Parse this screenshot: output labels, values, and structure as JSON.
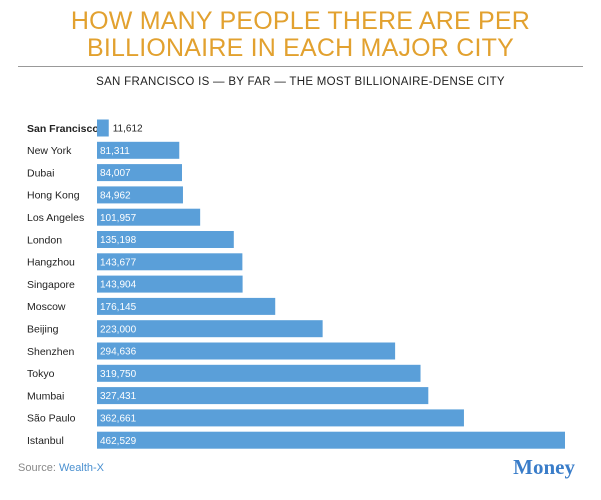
{
  "chart_data": {
    "type": "bar",
    "orientation": "horizontal",
    "title": "HOW MANY PEOPLE THERE ARE PER BILLIONAIRE IN EACH MAJOR CITY",
    "subtitle": "SAN FRANCISCO IS — BY FAR — THE MOST BILLIONAIRE-DENSE CITY",
    "categories": [
      "San Francisco",
      "New York",
      "Dubai",
      "Hong Kong",
      "Los Angeles",
      "London",
      "Hangzhou",
      "Singapore",
      "Moscow",
      "Beijing",
      "Shenzhen",
      "Tokyo",
      "Mumbai",
      "São Paulo",
      "Istanbul"
    ],
    "values": [
      11612,
      81311,
      84007,
      84962,
      101957,
      135198,
      143677,
      143904,
      176145,
      223000,
      294636,
      319750,
      327431,
      362661,
      462529
    ],
    "value_labels": [
      "11,612",
      "81,311",
      "84,007",
      "84,962",
      "101,957",
      "135,198",
      "143,677",
      "143,904",
      "176,145",
      "223,000",
      "294,636",
      "319,750",
      "327,431",
      "362,661",
      "462,529"
    ],
    "color": "#5a9fd9",
    "highlight_index": 0,
    "source_label": "Source:",
    "source": "Wealth-X",
    "logo": "Money"
  }
}
